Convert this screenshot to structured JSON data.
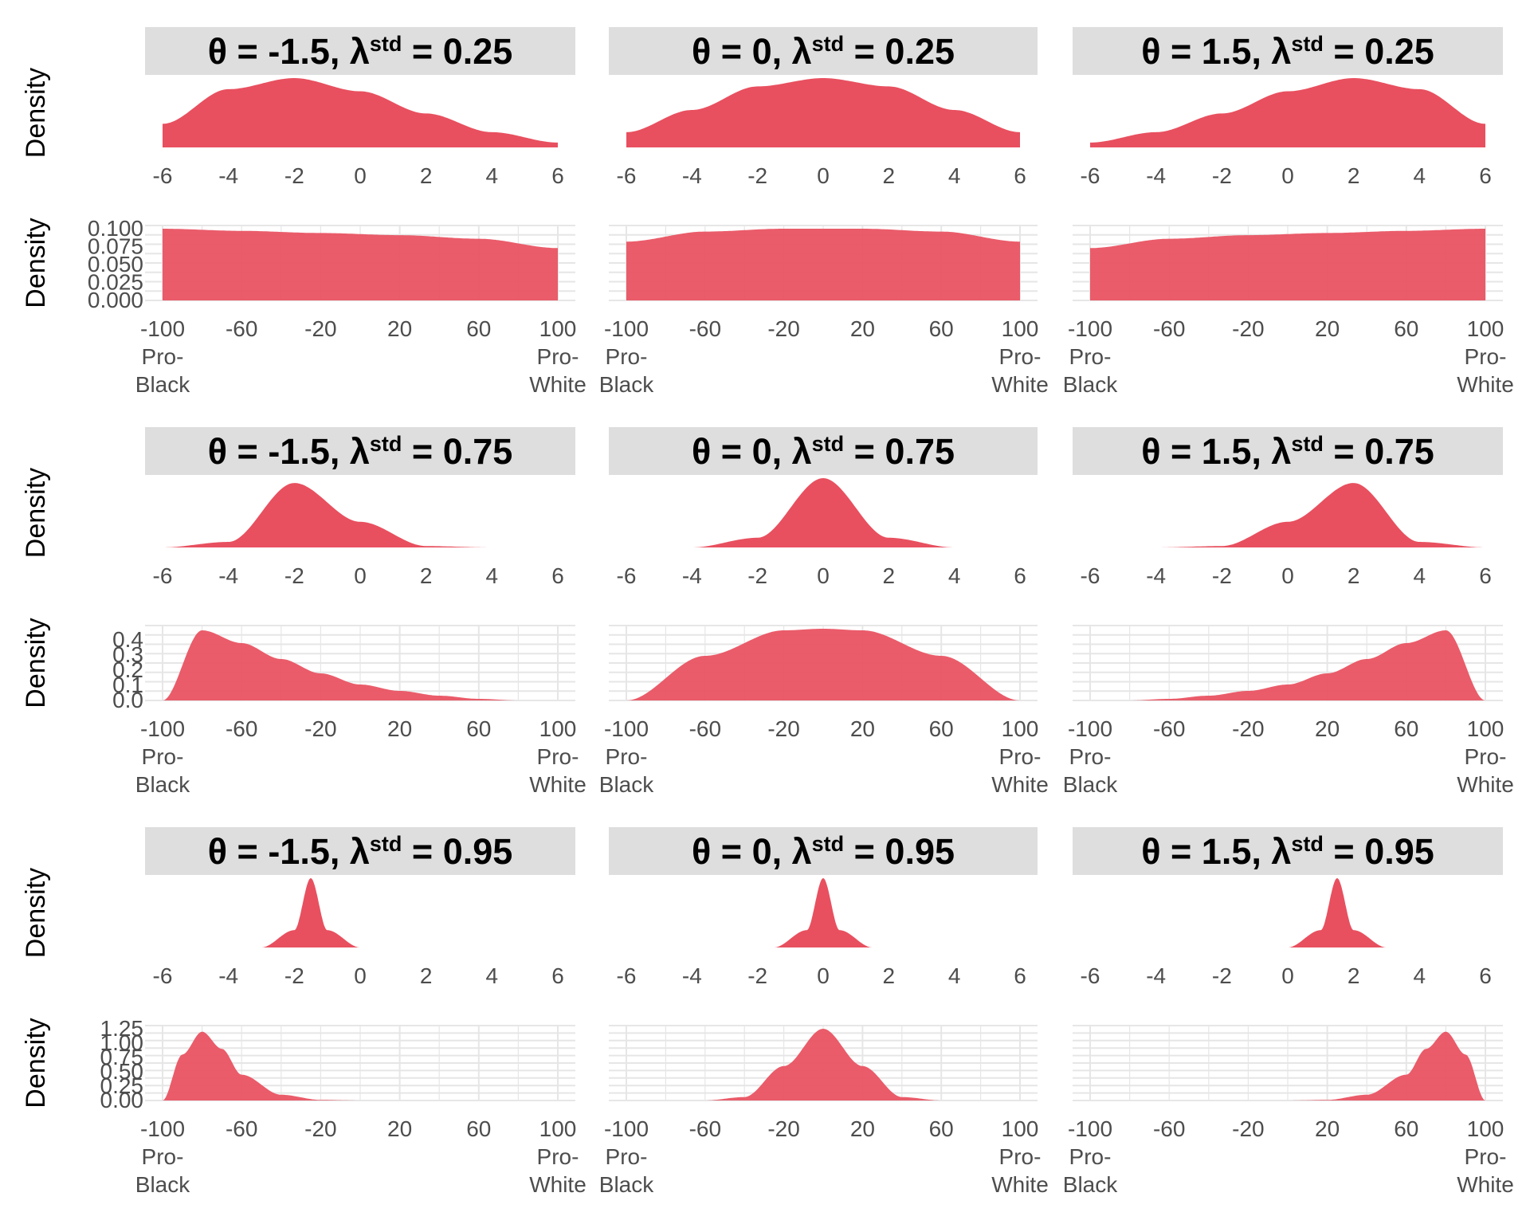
{
  "colors": {
    "fill": "#e8505f",
    "strip_bg": "#dedede",
    "grid": "#e6e6e6",
    "tick_text": "#4d4d4d"
  },
  "labels": {
    "density": "Density",
    "pro_black": [
      "Pro-",
      "Black"
    ],
    "pro_white": [
      "Pro-",
      "White"
    ]
  },
  "chart_data": [
    {
      "row": 1,
      "panel": "latent",
      "type": "area",
      "strip": [
        "θ = -1.5, λ",
        "std",
        " = 0.25"
      ],
      "theta": -1.5,
      "lambda_std": 0.25,
      "xlim": [
        -6,
        6
      ],
      "xticks": [
        "-6",
        "-4",
        "-2",
        "0",
        "2",
        "4",
        "6"
      ],
      "y_axis_shown": false,
      "x": [
        -6,
        -4,
        -2,
        0,
        2,
        4,
        6
      ],
      "y": [
        0.34,
        0.84,
        1.0,
        0.81,
        0.49,
        0.22,
        0.07
      ]
    },
    {
      "row": 1,
      "panel": "latent",
      "type": "area",
      "strip": [
        "θ = 0, λ",
        "std",
        " = 0.25"
      ],
      "theta": 0,
      "lambda_std": 0.25,
      "xlim": [
        -6,
        6
      ],
      "xticks": [
        "-6",
        "-4",
        "-2",
        "0",
        "2",
        "4",
        "6"
      ],
      "y_axis_shown": false,
      "x": [
        -6,
        -4,
        -2,
        0,
        2,
        4,
        6
      ],
      "y": [
        0.22,
        0.54,
        0.88,
        1.0,
        0.88,
        0.54,
        0.22
      ]
    },
    {
      "row": 1,
      "panel": "latent",
      "type": "area",
      "strip": [
        "θ = 1.5, λ",
        "std",
        " = 0.25"
      ],
      "theta": 1.5,
      "lambda_std": 0.25,
      "xlim": [
        -6,
        6
      ],
      "xticks": [
        "-6",
        "-4",
        "-2",
        "0",
        "2",
        "4",
        "6"
      ],
      "y_axis_shown": false,
      "x": [
        -6,
        -4,
        -2,
        0,
        2,
        4,
        6
      ],
      "y": [
        0.07,
        0.22,
        0.49,
        0.81,
        1.0,
        0.84,
        0.34
      ]
    },
    {
      "row": 1,
      "panel": "observed",
      "type": "area",
      "xlim": [
        -100,
        100
      ],
      "xticks": [
        "-100",
        "-60",
        "-20",
        "20",
        "60",
        "100"
      ],
      "yticks": [
        "0.000",
        "0.025",
        "0.050",
        "0.075",
        "0.100"
      ],
      "ylim": [
        0,
        0.1
      ],
      "x": [
        -100,
        -60,
        -20,
        20,
        60,
        100
      ],
      "y": [
        0.1,
        0.097,
        0.094,
        0.091,
        0.086,
        0.073
      ]
    },
    {
      "row": 1,
      "panel": "observed",
      "type": "area",
      "xlim": [
        -100,
        100
      ],
      "xticks": [
        "-100",
        "-60",
        "-20",
        "20",
        "60",
        "100"
      ],
      "yticks": [],
      "ylim": [
        0,
        0.1
      ],
      "x": [
        -100,
        -60,
        -20,
        20,
        60,
        100
      ],
      "y": [
        0.082,
        0.096,
        0.1,
        0.1,
        0.096,
        0.082
      ]
    },
    {
      "row": 1,
      "panel": "observed",
      "type": "area",
      "xlim": [
        -100,
        100
      ],
      "xticks": [
        "-100",
        "-60",
        "-20",
        "20",
        "60",
        "100"
      ],
      "yticks": [],
      "ylim": [
        0,
        0.1
      ],
      "x": [
        -100,
        -60,
        -20,
        20,
        60,
        100
      ],
      "y": [
        0.073,
        0.086,
        0.091,
        0.094,
        0.097,
        0.1
      ]
    },
    {
      "row": 2,
      "panel": "latent",
      "type": "area",
      "strip": [
        "θ = -1.5, λ",
        "std",
        " = 0.75"
      ],
      "theta": -1.5,
      "lambda_std": 0.75,
      "xlim": [
        -6,
        6
      ],
      "xticks": [
        "-6",
        "-4",
        "-2",
        "0",
        "2",
        "4",
        "6"
      ],
      "y_axis_shown": false,
      "x": [
        -6,
        -4,
        -2,
        0,
        2,
        4,
        6
      ],
      "y": [
        0.0,
        0.08,
        0.93,
        0.37,
        0.02,
        0.0,
        0.0
      ]
    },
    {
      "row": 2,
      "panel": "latent",
      "type": "area",
      "strip": [
        "θ = 0, λ",
        "std",
        " = 0.75"
      ],
      "theta": 0,
      "lambda_std": 0.75,
      "xlim": [
        -6,
        6
      ],
      "xticks": [
        "-6",
        "-4",
        "-2",
        "0",
        "2",
        "4",
        "6"
      ],
      "y_axis_shown": false,
      "x": [
        -6,
        -4,
        -2,
        0,
        2,
        4,
        6
      ],
      "y": [
        0.0,
        0.0,
        0.14,
        1.0,
        0.14,
        0.0,
        0.0
      ]
    },
    {
      "row": 2,
      "panel": "latent",
      "type": "area",
      "strip": [
        "θ = 1.5, λ",
        "std",
        " = 0.75"
      ],
      "theta": 1.5,
      "lambda_std": 0.75,
      "xlim": [
        -6,
        6
      ],
      "xticks": [
        "-6",
        "-4",
        "-2",
        "0",
        "2",
        "4",
        "6"
      ],
      "y_axis_shown": false,
      "x": [
        -6,
        -4,
        -2,
        0,
        2,
        4,
        6
      ],
      "y": [
        0.0,
        0.0,
        0.02,
        0.37,
        0.93,
        0.08,
        0.0
      ]
    },
    {
      "row": 2,
      "panel": "observed",
      "type": "area",
      "xlim": [
        -100,
        100
      ],
      "xticks": [
        "-100",
        "-60",
        "-20",
        "20",
        "60",
        "100"
      ],
      "yticks": [
        "0.0",
        "0.1",
        "0.2",
        "0.3",
        "0.4"
      ],
      "ylim": [
        0,
        0.45
      ],
      "x": [
        -100,
        -80,
        -60,
        -40,
        -20,
        0,
        20,
        40,
        60,
        80,
        100
      ],
      "y": [
        0.0,
        0.44,
        0.36,
        0.26,
        0.17,
        0.1,
        0.06,
        0.03,
        0.01,
        0.0,
        0.0
      ]
    },
    {
      "row": 2,
      "panel": "observed",
      "type": "area",
      "xlim": [
        -100,
        100
      ],
      "xticks": [
        "-100",
        "-60",
        "-20",
        "20",
        "60",
        "100"
      ],
      "yticks": [],
      "ylim": [
        0,
        0.45
      ],
      "x": [
        -100,
        -60,
        -20,
        0,
        20,
        60,
        100
      ],
      "y": [
        0.0,
        0.28,
        0.44,
        0.45,
        0.44,
        0.28,
        0.0
      ]
    },
    {
      "row": 2,
      "panel": "observed",
      "type": "area",
      "xlim": [
        -100,
        100
      ],
      "xticks": [
        "-100",
        "-60",
        "-20",
        "20",
        "60",
        "100"
      ],
      "yticks": [],
      "ylim": [
        0,
        0.45
      ],
      "x": [
        -100,
        -80,
        -60,
        -40,
        -20,
        0,
        20,
        40,
        60,
        80,
        100
      ],
      "y": [
        0.0,
        0.0,
        0.01,
        0.03,
        0.06,
        0.1,
        0.17,
        0.26,
        0.36,
        0.44,
        0.0
      ]
    },
    {
      "row": 3,
      "panel": "latent",
      "type": "area",
      "strip": [
        "θ = -1.5, λ",
        "std",
        " = 0.95"
      ],
      "theta": -1.5,
      "lambda_std": 0.95,
      "xlim": [
        -6,
        6
      ],
      "xticks": [
        "-6",
        "-4",
        "-2",
        "0",
        "2",
        "4",
        "6"
      ],
      "y_axis_shown": false,
      "x": [
        -3,
        -2,
        -1.5,
        -1,
        0
      ],
      "y": [
        0.0,
        0.25,
        1.0,
        0.25,
        0.0
      ]
    },
    {
      "row": 3,
      "panel": "latent",
      "type": "area",
      "strip": [
        "θ = 0, λ",
        "std",
        " = 0.95"
      ],
      "theta": 0,
      "lambda_std": 0.95,
      "xlim": [
        -6,
        6
      ],
      "xticks": [
        "-6",
        "-4",
        "-2",
        "0",
        "2",
        "4",
        "6"
      ],
      "y_axis_shown": false,
      "x": [
        -1.5,
        -0.5,
        0,
        0.5,
        1.5
      ],
      "y": [
        0.0,
        0.25,
        1.0,
        0.25,
        0.0
      ]
    },
    {
      "row": 3,
      "panel": "latent",
      "type": "area",
      "strip": [
        "θ = 1.5, λ",
        "std",
        " = 0.95"
      ],
      "theta": 1.5,
      "lambda_std": 0.95,
      "xlim": [
        -6,
        6
      ],
      "xticks": [
        "-6",
        "-4",
        "-2",
        "0",
        "2",
        "4",
        "6"
      ],
      "y_axis_shown": false,
      "x": [
        0,
        1,
        1.5,
        2,
        3
      ],
      "y": [
        0.0,
        0.25,
        1.0,
        0.25,
        0.0
      ]
    },
    {
      "row": 3,
      "panel": "observed",
      "type": "area",
      "xlim": [
        -100,
        100
      ],
      "xticks": [
        "-100",
        "-60",
        "-20",
        "20",
        "60",
        "100"
      ],
      "yticks": [
        "0.00",
        "0.25",
        "0.50",
        "0.75",
        "1.00",
        "1.25"
      ],
      "ylim": [
        0,
        1.25
      ],
      "x": [
        -100,
        -90,
        -80,
        -70,
        -60,
        -40,
        -20,
        0,
        100
      ],
      "y": [
        0.0,
        0.8,
        1.2,
        0.9,
        0.45,
        0.1,
        0.01,
        0.0,
        0.0
      ]
    },
    {
      "row": 3,
      "panel": "observed",
      "type": "area",
      "xlim": [
        -100,
        100
      ],
      "xticks": [
        "-100",
        "-60",
        "-20",
        "20",
        "60",
        "100"
      ],
      "yticks": [],
      "ylim": [
        0,
        1.25
      ],
      "x": [
        -100,
        -60,
        -40,
        -20,
        0,
        20,
        40,
        60,
        100
      ],
      "y": [
        0.0,
        0.0,
        0.06,
        0.6,
        1.25,
        0.6,
        0.06,
        0.0,
        0.0
      ]
    },
    {
      "row": 3,
      "panel": "observed",
      "type": "area",
      "xlim": [
        -100,
        100
      ],
      "xticks": [
        "-100",
        "-60",
        "-20",
        "20",
        "60",
        "100"
      ],
      "yticks": [],
      "ylim": [
        0,
        1.25
      ],
      "x": [
        -100,
        0,
        20,
        40,
        60,
        70,
        80,
        90,
        100
      ],
      "y": [
        0.0,
        0.0,
        0.01,
        0.1,
        0.45,
        0.9,
        1.2,
        0.8,
        0.0
      ]
    }
  ]
}
